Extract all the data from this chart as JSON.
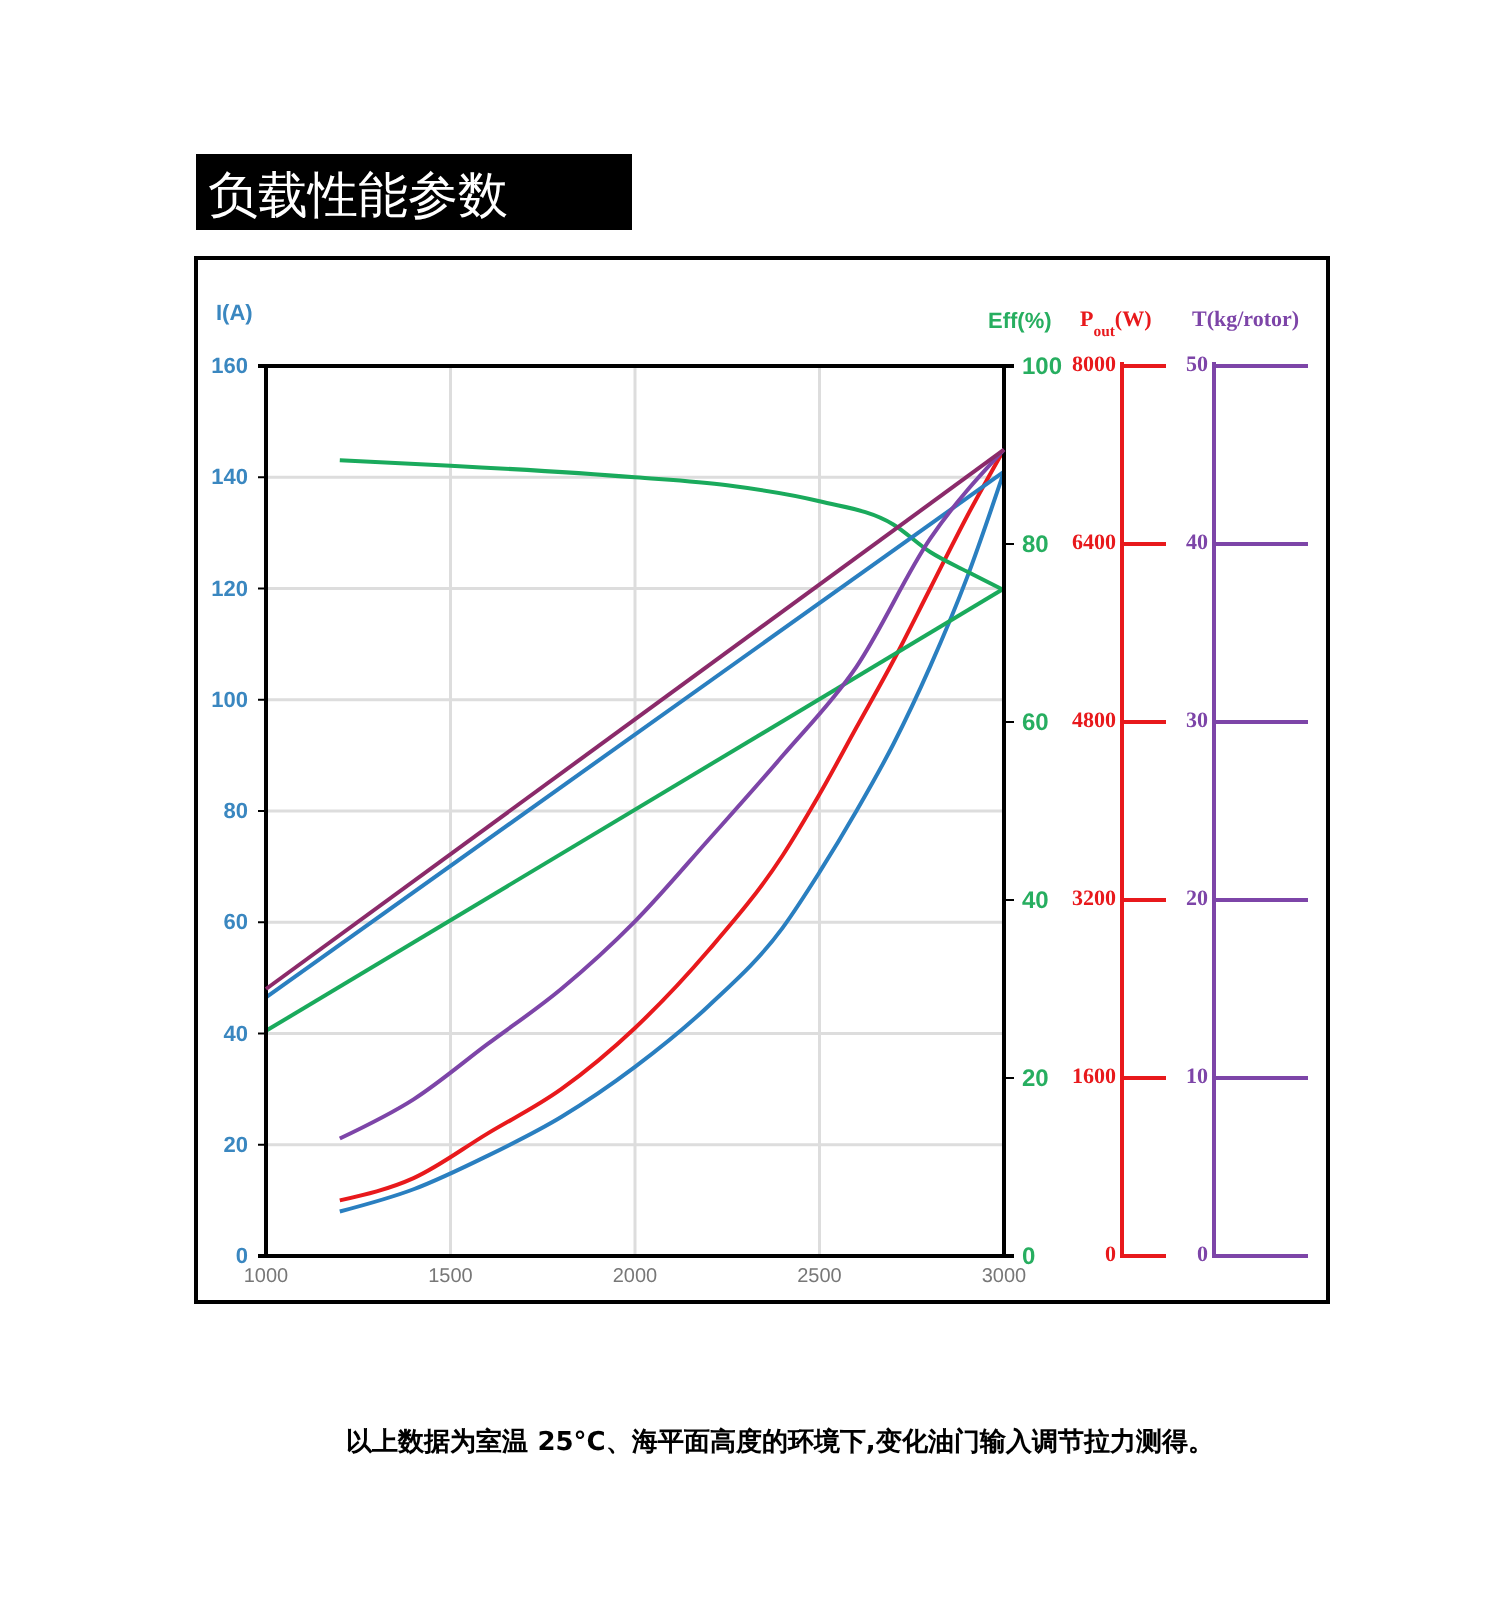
{
  "chart_data": [
    {
      "type": "line",
      "title": "负载性能参数",
      "ylabel": "I(A)",
      "y2label": "Eff(%)",
      "y3label": "P$_{out}$(W)",
      "xlim": [
        1000,
        3000
      ],
      "xticks": [
        1000,
        1500,
        2000,
        2500,
        3000
      ],
      "ylim": [
        0,
        160
      ],
      "yticks": [
        0,
        20,
        40,
        60,
        80,
        100,
        120,
        140,
        160
      ],
      "y2lim": [
        0,
        100
      ],
      "y2ticks": [
        0,
        20,
        40,
        60,
        80,
        100
      ],
      "y3lim": [
        0,
        8000
      ],
      "y3ticks": [
        0,
        1600,
        3200,
        4800,
        6400,
        8000
      ],
      "grid": true,
      "line_style": "solid",
      "marker": "none",
      "series": [
        {
          "color": "#2a7fc0",
          "x": [
            1200,
            1400,
            1600,
            1800,
            2000,
            2200,
            2400,
            2500,
            2600,
            2700,
            2800,
            2900,
            3000
          ],
          "values": [
            8,
            12,
            18,
            25,
            34,
            45,
            59,
            69,
            80,
            92,
            106,
            122,
            141
          ]
        },
        {
          "color": "#e8191c",
          "axis": "y3",
          "x": [
            1200,
            1400,
            1600,
            1800,
            2000,
            2200,
            2400,
            2500,
            2600,
            2700,
            2800,
            2900,
            3000
          ],
          "values": [
            500,
            700,
            1100,
            1500,
            2050,
            2750,
            3600,
            4150,
            4750,
            5350,
            6000,
            6650,
            7250
          ]
        },
        {
          "color": "#1aaa5c",
          "axis": "y2",
          "x": [
            1200,
            1500,
            2000,
            2250,
            2500,
            2700,
            2800,
            2900,
            3000
          ],
          "values": [
            89.4,
            88.8,
            87.5,
            86.6,
            84.8,
            82.2,
            79.1,
            76.9,
            74.8
          ]
        },
        {
          "color": "#2a7fc0",
          "x": [
            1000,
            3000
          ],
          "values": [
            46.5,
            141
          ]
        },
        {
          "color": "#1aaa5c",
          "axis": "y2",
          "x": [
            1000,
            3000
          ],
          "values": [
            25.3,
            75
          ]
        }
      ],
      "annotations": [
        "以上数据为室温 25°C、海平面高度的环境下,变化油门输入调节拉力测得。"
      ]
    },
    {
      "type": "line",
      "y2label": "T(kg/rotor)",
      "xlim": [
        1000,
        3000
      ],
      "xticks": [
        1000,
        1500,
        2000,
        2500,
        3000
      ],
      "tick_labels": "y",
      "y2lim": [
        0,
        50
      ],
      "y2ticks": [
        0,
        10,
        20,
        30,
        40,
        50
      ],
      "series": [
        {
          "color": "#7d45a8",
          "axis": "y2",
          "x": [
            1200,
            1400,
            1600,
            1800,
            2000,
            2200,
            2400,
            2600,
            2800,
            3000
          ],
          "values": [
            6.6,
            8.8,
            11.9,
            15,
            18.8,
            23.4,
            28.1,
            33.1,
            40.3,
            45.3
          ]
        },
        {
          "color": "#8b2a6a",
          "axis": "y2",
          "x": [
            1000,
            3000
          ],
          "values": [
            15,
            45.3
          ]
        }
      ]
    }
  ]
}
